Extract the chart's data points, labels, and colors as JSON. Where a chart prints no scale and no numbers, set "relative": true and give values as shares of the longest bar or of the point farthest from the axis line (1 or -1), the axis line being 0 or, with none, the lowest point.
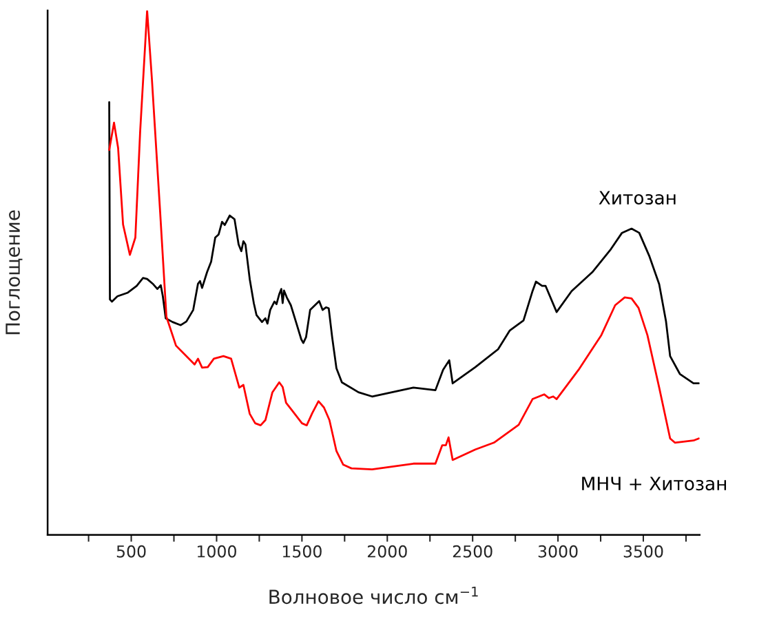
{
  "chart_data": {
    "type": "line",
    "relative": true,
    "xlabel": "Волновое число см$^{−1}$",
    "ylabel": "Поглощение",
    "xlim": [
      10,
      3830
    ],
    "xticks": [
      {
        "value": 250,
        "label": null
      },
      500,
      {
        "value": 750,
        "label": null
      },
      1000,
      {
        "value": 1250,
        "label": null
      },
      1500,
      {
        "value": 1750,
        "label": null
      },
      2000,
      {
        "value": 2250,
        "label": null
      },
      2500,
      {
        "value": 2750,
        "label": null
      },
      3000,
      {
        "value": 3250,
        "label": null
      },
      3500,
      {
        "value": 3750,
        "label": null
      }
    ],
    "tick_labels": "x",
    "grid": false,
    "legend": false,
    "marker": "none",
    "line_style": "solid",
    "series": [
      {
        "name": "Хитозан",
        "color": "#000000",
        "x": [
          371,
          375,
          387,
          419,
          480,
          532,
          569,
          593,
          629,
          653,
          673,
          685,
          702,
          742,
          790,
          823,
          863,
          891,
          903,
          915,
          944,
          968,
          992,
          1012,
          1032,
          1048,
          1077,
          1105,
          1129,
          1145,
          1157,
          1169,
          1194,
          1218,
          1234,
          1266,
          1286,
          1298,
          1314,
          1339,
          1351,
          1367,
          1379,
          1387,
          1395,
          1411,
          1435,
          1468,
          1496,
          1508,
          1524,
          1548,
          1601,
          1621,
          1641,
          1657,
          1677,
          1702,
          1734,
          1831,
          1911,
          2153,
          2282,
          2327,
          2363,
          2383,
          2516,
          2649,
          2718,
          2798,
          2851,
          2871,
          2907,
          2927,
          2992,
          3080,
          3201,
          3310,
          3375,
          3431,
          3476,
          3536,
          3593,
          3633,
          3657,
          3714,
          3794,
          3825
        ],
        "values": [
          0.825,
          0.449,
          0.445,
          0.455,
          0.462,
          0.475,
          0.49,
          0.488,
          0.478,
          0.469,
          0.476,
          0.455,
          0.413,
          0.406,
          0.4,
          0.407,
          0.429,
          0.479,
          0.484,
          0.471,
          0.501,
          0.521,
          0.567,
          0.573,
          0.597,
          0.591,
          0.609,
          0.602,
          0.554,
          0.541,
          0.56,
          0.554,
          0.488,
          0.442,
          0.419,
          0.406,
          0.413,
          0.403,
          0.429,
          0.445,
          0.44,
          0.459,
          0.469,
          0.442,
          0.466,
          0.453,
          0.438,
          0.403,
          0.373,
          0.366,
          0.377,
          0.429,
          0.446,
          0.429,
          0.434,
          0.432,
          0.377,
          0.318,
          0.291,
          0.272,
          0.264,
          0.281,
          0.276,
          0.315,
          0.333,
          0.289,
          0.32,
          0.354,
          0.39,
          0.409,
          0.465,
          0.483,
          0.475,
          0.475,
          0.425,
          0.465,
          0.501,
          0.545,
          0.576,
          0.584,
          0.576,
          0.531,
          0.478,
          0.407,
          0.341,
          0.307,
          0.289,
          0.289
        ]
      },
      {
        "name": "МНЧ + Хитозан",
        "color": "#ff0000",
        "x": [
          371,
          399,
          423,
          452,
          492,
          524,
          552,
          593,
          621,
          669,
          706,
          762,
          871,
          891,
          915,
          948,
          984,
          1040,
          1085,
          1133,
          1157,
          1194,
          1226,
          1258,
          1286,
          1327,
          1367,
          1387,
          1407,
          1448,
          1500,
          1528,
          1560,
          1597,
          1629,
          1661,
          1702,
          1742,
          1790,
          1911,
          2153,
          2282,
          2322,
          2343,
          2359,
          2383,
          2516,
          2625,
          2770,
          2851,
          2919,
          2947,
          2972,
          2992,
          3121,
          3254,
          3335,
          3391,
          3431,
          3472,
          3524,
          3593,
          3657,
          3685,
          3794,
          3825
        ],
        "values": [
          0.734,
          0.786,
          0.738,
          0.592,
          0.534,
          0.567,
          0.768,
          1.0,
          0.869,
          0.617,
          0.416,
          0.361,
          0.325,
          0.336,
          0.319,
          0.32,
          0.336,
          0.341,
          0.336,
          0.281,
          0.286,
          0.231,
          0.213,
          0.209,
          0.219,
          0.272,
          0.291,
          0.282,
          0.252,
          0.235,
          0.213,
          0.209,
          0.232,
          0.255,
          0.243,
          0.219,
          0.16,
          0.134,
          0.127,
          0.125,
          0.136,
          0.136,
          0.171,
          0.171,
          0.186,
          0.143,
          0.163,
          0.176,
          0.21,
          0.259,
          0.268,
          0.261,
          0.264,
          0.259,
          0.315,
          0.381,
          0.438,
          0.453,
          0.451,
          0.433,
          0.381,
          0.281,
          0.184,
          0.176,
          0.18,
          0.184
        ]
      }
    ]
  }
}
